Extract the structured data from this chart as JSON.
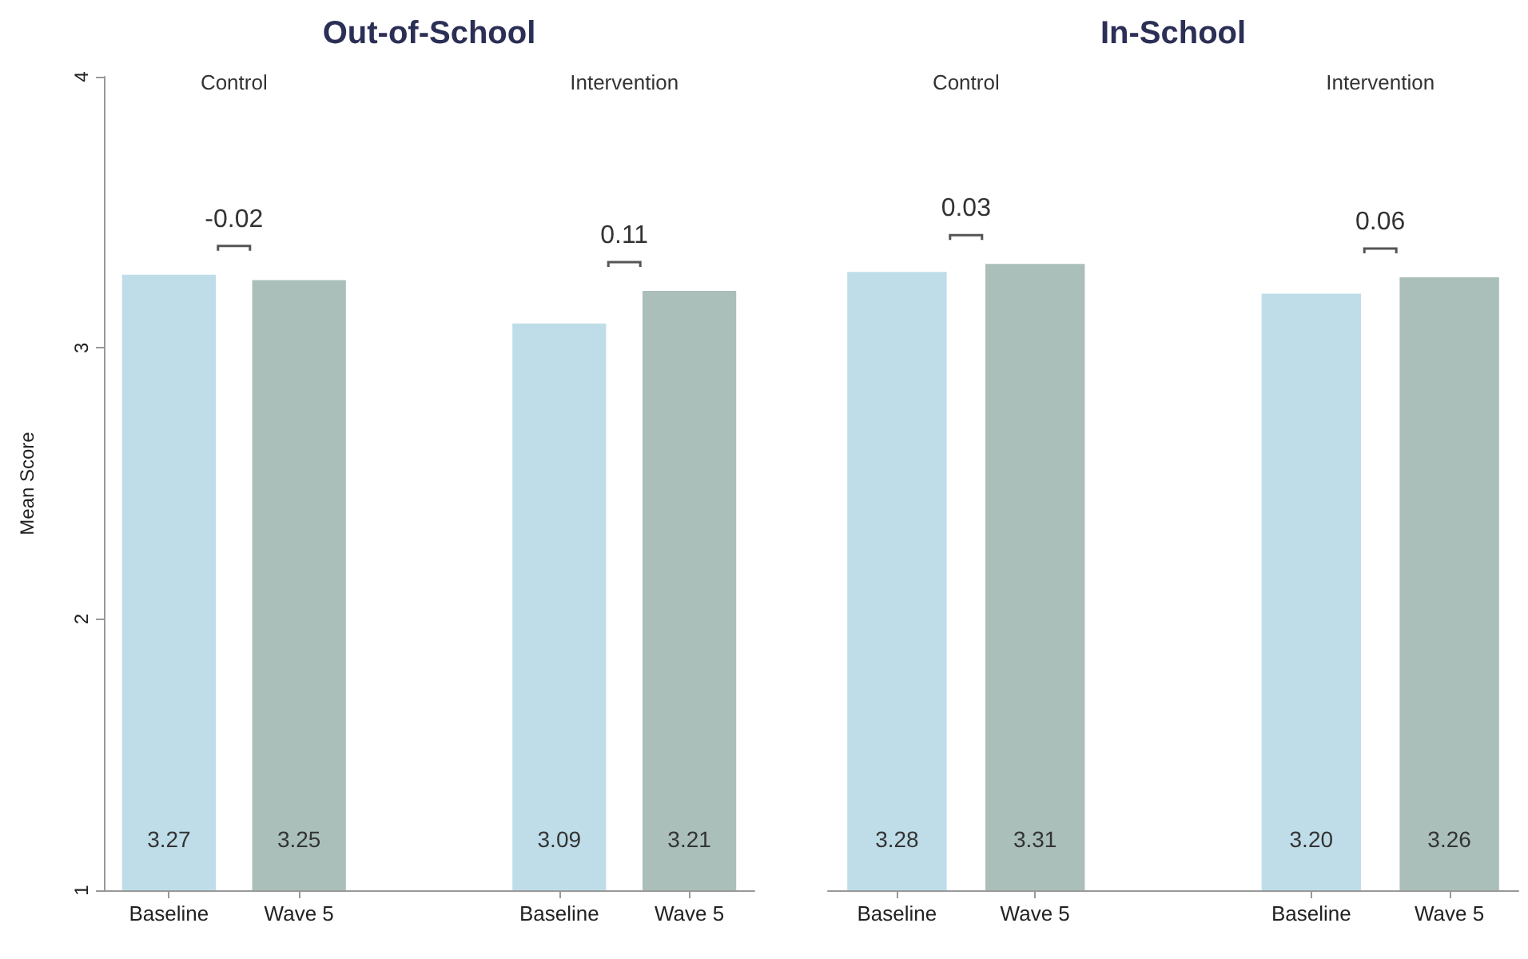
{
  "chart_data": [
    {
      "type": "bar",
      "title": "Out-of-School",
      "ylabel": "Mean Score",
      "categories": [
        "Baseline",
        "Wave 5",
        null,
        "Baseline",
        "Wave 5"
      ],
      "values": [
        3.27,
        3.25,
        null,
        3.09,
        3.21
      ],
      "value_labels": [
        "3.27",
        "3.25",
        null,
        "3.09",
        "3.21"
      ],
      "colors": [
        "#bfdde8",
        "#aabfba",
        null,
        "#bfdde8",
        "#aabfba"
      ],
      "ylim": [
        1,
        4
      ],
      "yticks": [
        1,
        2,
        3,
        4
      ],
      "grid": false,
      "annotations": [
        "Control",
        "Intervention",
        "-0.02",
        "0.11"
      ]
    },
    {
      "type": "bar",
      "title": "In-School",
      "categories": [
        "Baseline",
        "Wave 5",
        null,
        "Baseline",
        "Wave 5"
      ],
      "values": [
        3.28,
        3.31,
        null,
        3.2,
        3.26
      ],
      "value_labels": [
        "3.28",
        "3.31",
        null,
        "3.20",
        "3.26"
      ],
      "colors": [
        "#bfdde8",
        "#aabfba",
        null,
        "#bfdde8",
        "#aabfba"
      ],
      "ylim": [
        1,
        4
      ],
      "yticks": [
        1,
        2,
        3,
        4
      ],
      "grid": false,
      "tick_labels": "x",
      "annotations": [
        "Control",
        "Intervention",
        "0.03",
        "0.06"
      ]
    }
  ]
}
